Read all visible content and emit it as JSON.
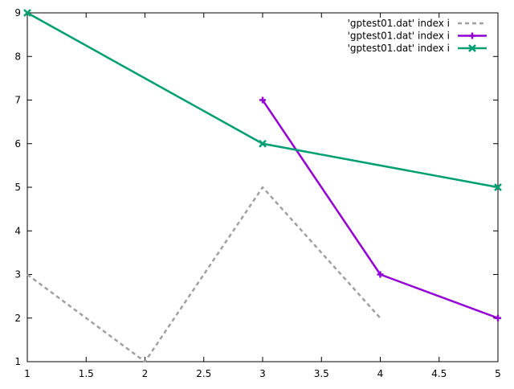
{
  "chart_data": {
    "type": "line",
    "title": "",
    "xlabel": "",
    "ylabel": "",
    "xlim": [
      1,
      5
    ],
    "ylim": [
      1,
      9
    ],
    "xticks": [
      "1",
      "1.5",
      "2",
      "2.5",
      "3",
      "3.5",
      "4",
      "4.5",
      "5"
    ],
    "yticks": [
      "1",
      "2",
      "3",
      "4",
      "5",
      "6",
      "7",
      "8",
      "9"
    ],
    "grid": false,
    "legend_position": "top-right",
    "series": [
      {
        "name": "'gptest01.dat' index i",
        "color": "#a0a0a0",
        "style": "dashed",
        "marker": "none",
        "x": [
          1,
          2,
          3,
          4
        ],
        "y": [
          3,
          1,
          5,
          2
        ]
      },
      {
        "name": "'gptest01.dat' index i",
        "color": "#9400d3",
        "style": "solid",
        "marker": "plus",
        "x": [
          3,
          4,
          5
        ],
        "y": [
          7,
          3,
          2
        ]
      },
      {
        "name": "'gptest01.dat' index i",
        "color": "#009e73",
        "style": "solid",
        "marker": "cross",
        "x": [
          1,
          3,
          5
        ],
        "y": [
          9,
          6,
          5
        ]
      }
    ]
  }
}
